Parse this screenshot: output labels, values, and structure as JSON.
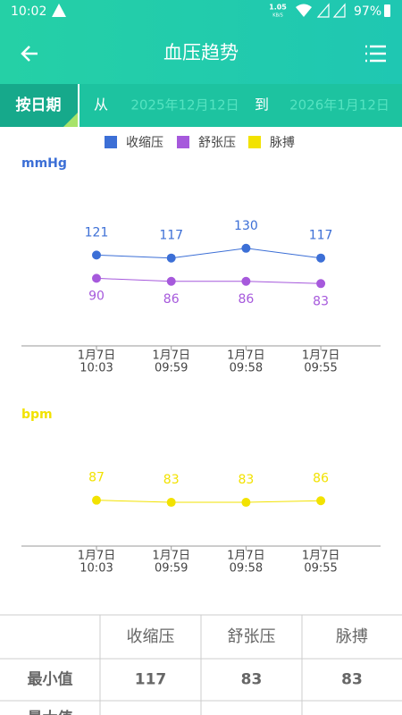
{
  "status_bar": {
    "time": "10:02",
    "speed": "1.05",
    "speed_unit": "KB/S",
    "battery": "97%"
  },
  "header": {
    "title": "血压趋势"
  },
  "filter": {
    "mode": "按日期",
    "from": "从",
    "start": "2025年12月12日",
    "to": "到",
    "end": "2026年1月12日"
  },
  "chart_data": [
    {
      "type": "line",
      "y_label": "mmHg",
      "categories": [
        [
          "1月7日",
          "10:03"
        ],
        [
          "1月7日",
          "09:59"
        ],
        [
          "1月7日",
          "09:58"
        ],
        [
          "1月7日",
          "09:55"
        ]
      ],
      "series": [
        {
          "name": "收缩压",
          "color": "#3c6fd6",
          "values": [
            121,
            117,
            130,
            117
          ],
          "label_pos": "above"
        },
        {
          "name": "舒张压",
          "color": "#a659dc",
          "values": [
            90,
            86,
            86,
            83
          ],
          "label_pos": "below"
        }
      ],
      "ylim": [
        0,
        200
      ]
    },
    {
      "type": "line",
      "y_label": "bpm",
      "categories": [
        [
          "1月7日",
          "10:03"
        ],
        [
          "1月7日",
          "09:59"
        ],
        [
          "1月7日",
          "09:58"
        ],
        [
          "1月7日",
          "09:55"
        ]
      ],
      "series": [
        {
          "name": "脉搏",
          "color": "#f2e200",
          "values": [
            87,
            83,
            83,
            86
          ],
          "label_pos": "above"
        }
      ],
      "ylim": [
        0,
        200
      ]
    }
  ],
  "table": {
    "header": [
      "收缩压",
      "舒张压",
      "脉搏"
    ],
    "rows": [
      {
        "label": "最小值",
        "cells": [
          "117",
          "83",
          "83"
        ]
      },
      {
        "label": "最大值"
      }
    ]
  }
}
